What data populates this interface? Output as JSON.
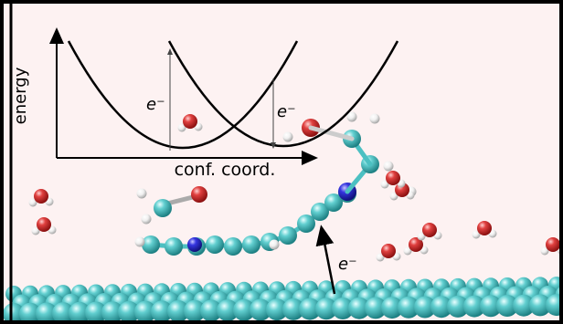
{
  "diagram": {
    "y_axis_label": "energy",
    "x_axis_label": "conf. coord.",
    "electron_labels": [
      "e⁻",
      "e⁻",
      "e⁻"
    ]
  }
}
